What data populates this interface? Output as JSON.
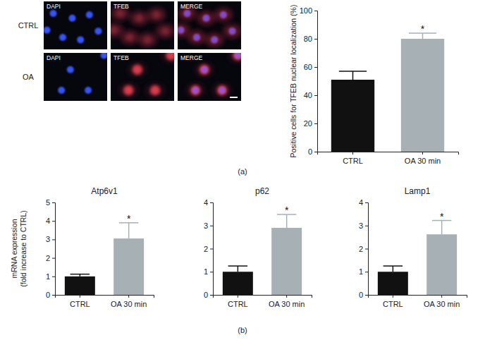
{
  "chart_data": [
    {
      "type": "bar",
      "y_label": [
        "Positive cells for TFEB nuclear localization (%)"
      ],
      "categories": [
        "CTRL",
        "OA 30 min"
      ],
      "values": [
        51,
        80
      ],
      "errors": [
        6,
        4
      ],
      "significance": [
        null,
        "*"
      ],
      "colors": [
        "#111111",
        "#a7b0b4"
      ],
      "ylim": [
        0,
        100
      ],
      "yticks": [
        0,
        20,
        40,
        60,
        80,
        100
      ]
    },
    {
      "type": "bar",
      "title": "Atp6v1",
      "y_label": [
        "mRNA expression",
        "(fold increase to CTRL)"
      ],
      "categories": [
        "CTRL",
        "OA 30 min"
      ],
      "values": [
        1,
        3.05
      ],
      "errors": [
        0.12,
        0.85
      ],
      "significance": [
        null,
        "*"
      ],
      "colors": [
        "#111111",
        "#a7b0b4"
      ],
      "ylim": [
        0,
        5
      ],
      "yticks": [
        0,
        1,
        2,
        3,
        4,
        5
      ]
    },
    {
      "type": "bar",
      "title": "p62",
      "categories": [
        "CTRL",
        "OA 30 min"
      ],
      "values": [
        1,
        2.9
      ],
      "errors": [
        0.25,
        0.58
      ],
      "significance": [
        null,
        "*"
      ],
      "colors": [
        "#111111",
        "#a7b0b4"
      ],
      "ylim": [
        0,
        4
      ],
      "yticks": [
        0,
        1,
        2,
        3,
        4
      ]
    },
    {
      "type": "bar",
      "title": "Lamp1",
      "categories": [
        "CTRL",
        "OA 30 min"
      ],
      "values": [
        1,
        2.62
      ],
      "errors": [
        0.25,
        0.6
      ],
      "significance": [
        null,
        "*"
      ],
      "colors": [
        "#111111",
        "#a7b0b4"
      ],
      "ylim": [
        0,
        4
      ],
      "yticks": [
        0,
        1,
        2,
        3,
        4
      ]
    }
  ],
  "figure": {
    "row_labels": [
      "CTRL",
      "OA"
    ],
    "channel_labels": [
      "DAPI",
      "TFEB",
      "MERGE"
    ],
    "panel_labels": [
      "(a)",
      "(b)"
    ]
  }
}
